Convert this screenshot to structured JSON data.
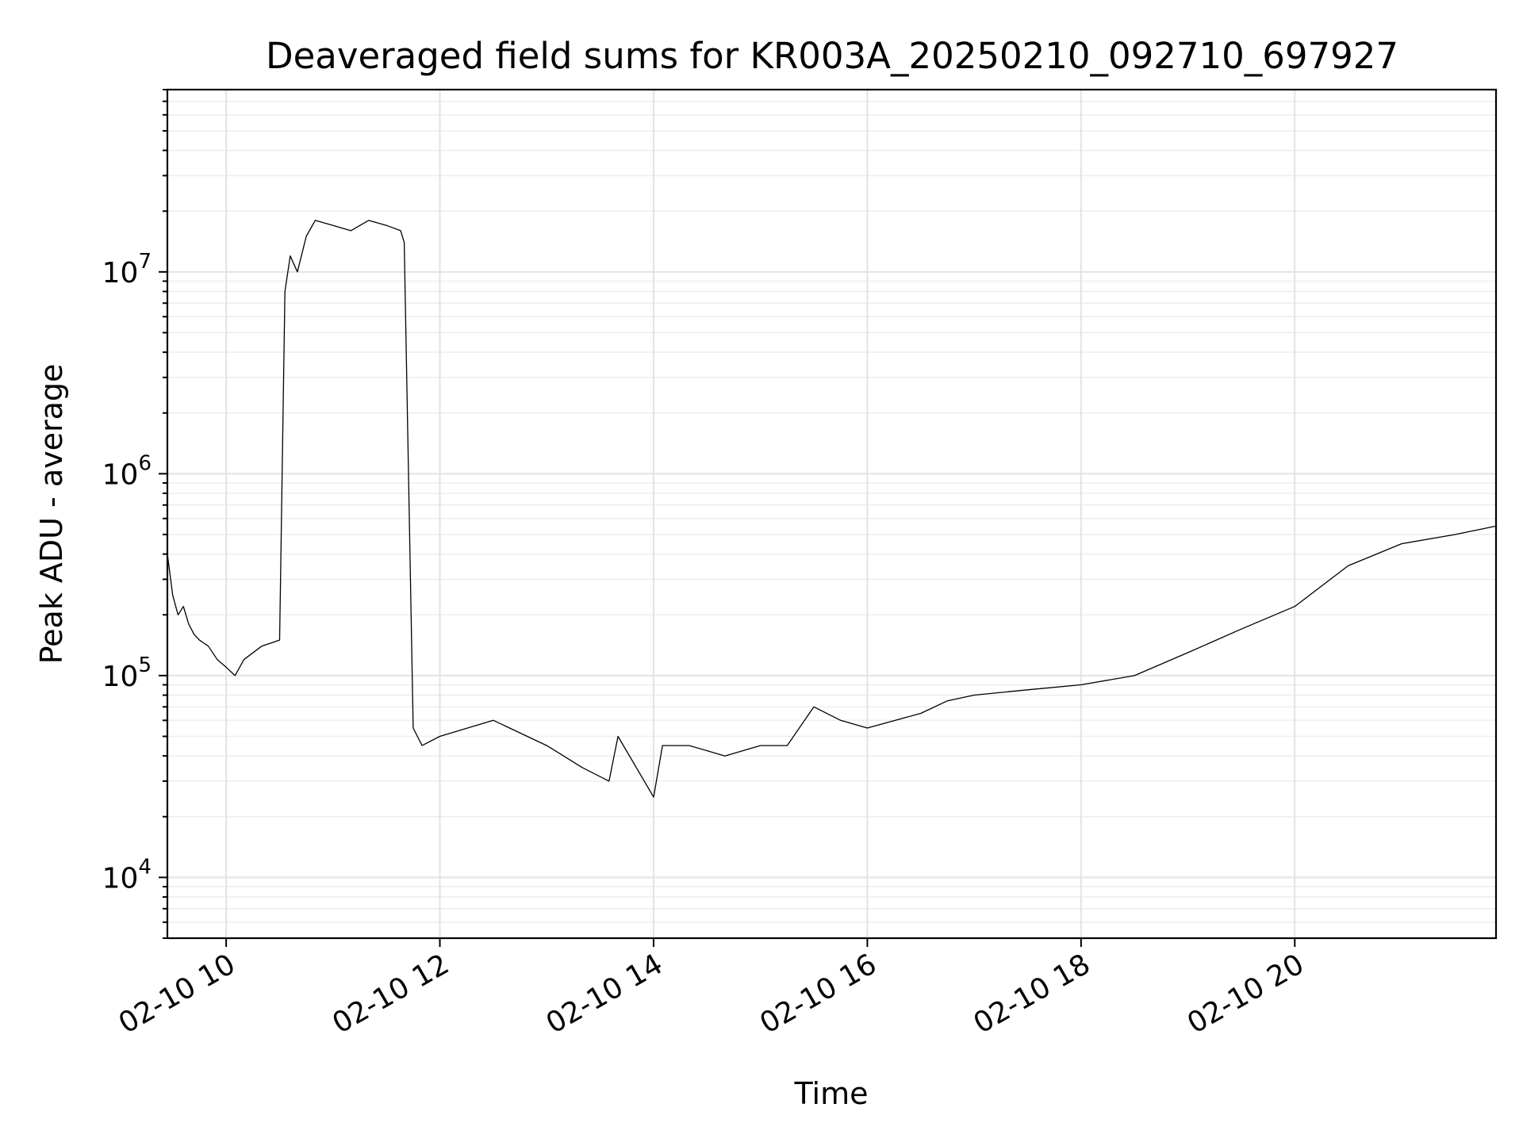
{
  "chart_data": {
    "type": "line",
    "title": "Deaveraged field sums for KR003A_20250210_092710_697927",
    "xlabel": "Time",
    "ylabel": "Peak ADU - average",
    "yscale": "log",
    "xlim": [
      "2025-02-10 09:27",
      "2025-02-10 21:53"
    ],
    "ylim": [
      5000,
      80000000
    ],
    "grid": true,
    "color": "#000000",
    "x_ticks": [
      {
        "value": "2025-02-10 10:00",
        "label": "02-10 10"
      },
      {
        "value": "2025-02-10 12:00",
        "label": "02-10 12"
      },
      {
        "value": "2025-02-10 14:00",
        "label": "02-10 14"
      },
      {
        "value": "2025-02-10 16:00",
        "label": "02-10 16"
      },
      {
        "value": "2025-02-10 18:00",
        "label": "02-10 18"
      },
      {
        "value": "2025-02-10 20:00",
        "label": "02-10 20"
      }
    ],
    "y_ticks": [
      {
        "value": 10000,
        "base": "10",
        "exp": "4"
      },
      {
        "value": 100000,
        "base": "10",
        "exp": "5"
      },
      {
        "value": 1000000,
        "base": "10",
        "exp": "6"
      },
      {
        "value": 10000000,
        "base": "10",
        "exp": "7"
      }
    ],
    "series": [
      {
        "x": [
          "2025-02-10 09:27",
          "2025-02-10 09:30",
          "2025-02-10 09:33",
          "2025-02-10 09:36",
          "2025-02-10 09:39",
          "2025-02-10 09:42",
          "2025-02-10 09:45",
          "2025-02-10 09:50",
          "2025-02-10 09:55",
          "2025-02-10 10:00",
          "2025-02-10 10:05",
          "2025-02-10 10:10",
          "2025-02-10 10:20",
          "2025-02-10 10:30",
          "2025-02-10 10:33",
          "2025-02-10 10:36",
          "2025-02-10 10:40",
          "2025-02-10 10:45",
          "2025-02-10 10:50",
          "2025-02-10 11:00",
          "2025-02-10 11:10",
          "2025-02-10 11:20",
          "2025-02-10 11:30",
          "2025-02-10 11:38",
          "2025-02-10 11:40",
          "2025-02-10 11:45",
          "2025-02-10 11:50",
          "2025-02-10 12:00",
          "2025-02-10 12:30",
          "2025-02-10 13:00",
          "2025-02-10 13:20",
          "2025-02-10 13:35",
          "2025-02-10 13:40",
          "2025-02-10 14:00",
          "2025-02-10 14:05",
          "2025-02-10 14:20",
          "2025-02-10 14:40",
          "2025-02-10 15:00",
          "2025-02-10 15:15",
          "2025-02-10 15:30",
          "2025-02-10 15:45",
          "2025-02-10 16:00",
          "2025-02-10 16:30",
          "2025-02-10 16:45",
          "2025-02-10 17:00",
          "2025-02-10 17:30",
          "2025-02-10 18:00",
          "2025-02-10 18:30",
          "2025-02-10 19:00",
          "2025-02-10 19:30",
          "2025-02-10 20:00",
          "2025-02-10 20:30",
          "2025-02-10 21:00",
          "2025-02-10 21:30",
          "2025-02-10 21:53"
        ],
        "y": [
          400000,
          250000,
          200000,
          220000,
          180000,
          160000,
          150000,
          140000,
          120000,
          110000,
          100000,
          120000,
          140000,
          150000,
          8000000,
          12000000,
          10000000,
          15000000,
          18000000,
          17000000,
          16000000,
          18000000,
          17000000,
          16000000,
          14000000,
          55000,
          45000,
          50000,
          60000,
          45000,
          35000,
          30000,
          50000,
          25000,
          45000,
          45000,
          40000,
          45000,
          45000,
          70000,
          60000,
          55000,
          65000,
          75000,
          80000,
          85000,
          90000,
          100000,
          130000,
          170000,
          220000,
          350000,
          450000,
          500000,
          550000
        ]
      }
    ]
  }
}
